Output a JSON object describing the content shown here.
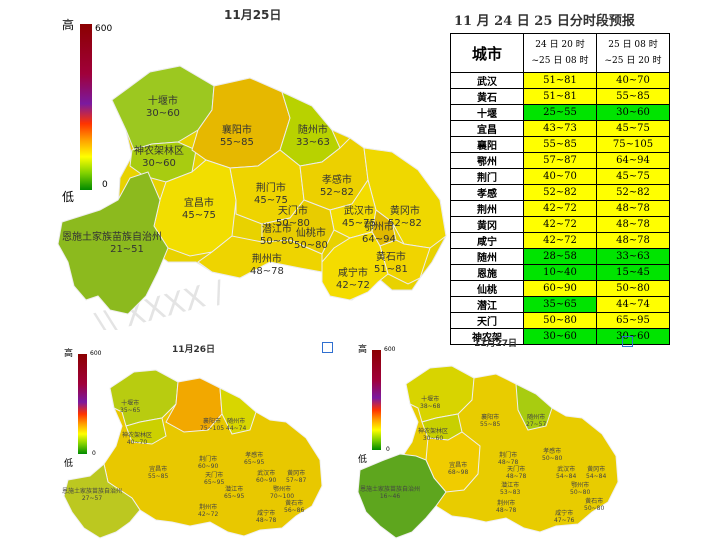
{
  "map_main": {
    "title": "11月25日",
    "legend": {
      "high": "高",
      "low": "低",
      "max": "600",
      "min": "0"
    },
    "cities": [
      {
        "name": "十堰市",
        "value": "30~60"
      },
      {
        "name": "神农架林区",
        "value": "30~60"
      },
      {
        "name": "襄阳市",
        "value": "55~85"
      },
      {
        "name": "随州市",
        "value": "33~63"
      },
      {
        "name": "孝感市",
        "value": "52~82"
      },
      {
        "name": "荆门市",
        "value": "45~75"
      },
      {
        "name": "宜昌市",
        "value": "45~75"
      },
      {
        "name": "天门市",
        "value": "50~80"
      },
      {
        "name": "潜江市",
        "value": "50~80"
      },
      {
        "name": "仙桃市",
        "value": "50~80"
      },
      {
        "name": "武汉市",
        "value": "45~75"
      },
      {
        "name": "黄冈市",
        "value": "52~82"
      },
      {
        "name": "鄂州市",
        "value": "64~94"
      },
      {
        "name": "荆州市",
        "value": "48~78"
      },
      {
        "name": "黄石市",
        "value": "51~81"
      },
      {
        "name": "咸宁市",
        "value": "42~72"
      },
      {
        "name": "恩施土家族苗族自治州",
        "value": "21~51"
      }
    ]
  },
  "table": {
    "title": "11 月 24 日 25 日分时段预报",
    "header_city": "城市",
    "header_p1": [
      "24 日 20 时",
      "~25 日 08 时"
    ],
    "header_p2": [
      "25 日 08 时",
      "~25 日 20 时"
    ],
    "rows": [
      {
        "city": "武汉",
        "p1": "51~81",
        "p2": "40~70",
        "c1": "#ffff00",
        "c2": "#ffff00"
      },
      {
        "city": "黄石",
        "p1": "51~81",
        "p2": "55~85",
        "c1": "#ffff00",
        "c2": "#ffff00"
      },
      {
        "city": "十堰",
        "p1": "25~55",
        "p2": "30~60",
        "c1": "#00e400",
        "c2": "#00e400"
      },
      {
        "city": "宜昌",
        "p1": "43~73",
        "p2": "45~75",
        "c1": "#ffff00",
        "c2": "#ffff00"
      },
      {
        "city": "襄阳",
        "p1": "55~85",
        "p2": "75~105",
        "c1": "#ffff00",
        "c2": "#ffff00"
      },
      {
        "city": "鄂州",
        "p1": "57~87",
        "p2": "64~94",
        "c1": "#ffff00",
        "c2": "#ffff00"
      },
      {
        "city": "荆门",
        "p1": "40~70",
        "p2": "45~75",
        "c1": "#ffff00",
        "c2": "#ffff00"
      },
      {
        "city": "孝感",
        "p1": "52~82",
        "p2": "52~82",
        "c1": "#ffff00",
        "c2": "#ffff00"
      },
      {
        "city": "荆州",
        "p1": "42~72",
        "p2": "48~78",
        "c1": "#ffff00",
        "c2": "#ffff00"
      },
      {
        "city": "黄冈",
        "p1": "42~72",
        "p2": "48~78",
        "c1": "#ffff00",
        "c2": "#ffff00"
      },
      {
        "city": "咸宁",
        "p1": "42~72",
        "p2": "48~78",
        "c1": "#ffff00",
        "c2": "#ffff00"
      },
      {
        "city": "随州",
        "p1": "28~58",
        "p2": "33~63",
        "c1": "#00e400",
        "c2": "#00e400"
      },
      {
        "city": "恩施",
        "p1": "10~40",
        "p2": "15~45",
        "c1": "#00e400",
        "c2": "#00e400"
      },
      {
        "city": "仙桃",
        "p1": "60~90",
        "p2": "50~80",
        "c1": "#ffff00",
        "c2": "#ffff00"
      },
      {
        "city": "潜江",
        "p1": "35~65",
        "p2": "44~74",
        "c1": "#00e400",
        "c2": "#ffff00"
      },
      {
        "city": "天门",
        "p1": "50~80",
        "p2": "65~95",
        "c1": "#ffff00",
        "c2": "#ffff00"
      },
      {
        "city": "神农架",
        "p1": "30~60",
        "p2": "30~60",
        "c1": "#00e400",
        "c2": "#00e400"
      }
    ]
  },
  "map_26": {
    "title": "11月26日",
    "legend": {
      "high": "高",
      "low": "低",
      "max": "600",
      "min": "0"
    },
    "cities": [
      {
        "name": "十堰市",
        "value": "35~65"
      },
      {
        "name": "襄阳市",
        "value": "75~105"
      },
      {
        "name": "随州市",
        "value": "44~74"
      },
      {
        "name": "神农架林区",
        "value": "40~70"
      },
      {
        "name": "荆门市",
        "value": "60~90"
      },
      {
        "name": "孝感市",
        "value": "65~95"
      },
      {
        "name": "宜昌市",
        "value": "55~85"
      },
      {
        "name": "天门市",
        "value": "65~95"
      },
      {
        "name": "武汉市",
        "value": "60~90"
      },
      {
        "name": "黄冈市",
        "value": "57~87"
      },
      {
        "name": "潜江市",
        "value": "65~95"
      },
      {
        "name": "鄂州市",
        "value": "70~100"
      },
      {
        "name": "恩施土家族苗族自治州",
        "value": "27~57"
      },
      {
        "name": "荆州市",
        "value": "42~72"
      },
      {
        "name": "咸宁市",
        "value": "48~78"
      },
      {
        "name": "黄石市",
        "value": "56~86"
      }
    ]
  },
  "map_27": {
    "title": "11月27日",
    "legend": {
      "high": "高",
      "low": "低",
      "max": "600",
      "min": "0"
    },
    "cities": [
      {
        "name": "十堰市",
        "value": "38~68"
      },
      {
        "name": "襄阳市",
        "value": "55~85"
      },
      {
        "name": "随州市",
        "value": "27~57"
      },
      {
        "name": "神农架林区",
        "value": "30~60"
      },
      {
        "name": "荆门市",
        "value": "48~78"
      },
      {
        "name": "孝感市",
        "value": "50~80"
      },
      {
        "name": "宜昌市",
        "value": "68~98"
      },
      {
        "name": "天门市",
        "value": "48~78"
      },
      {
        "name": "武汉市",
        "value": "54~84"
      },
      {
        "name": "黄冈市",
        "value": "54~84"
      },
      {
        "name": "潜江市",
        "value": "53~83"
      },
      {
        "name": "鄂州市",
        "value": "50~80"
      },
      {
        "name": "恩施土家族苗族自治州",
        "value": "16~46"
      },
      {
        "name": "荆州市",
        "value": "48~78"
      },
      {
        "name": "咸宁市",
        "value": "47~76"
      },
      {
        "name": "黄石市",
        "value": "50~80"
      }
    ]
  }
}
